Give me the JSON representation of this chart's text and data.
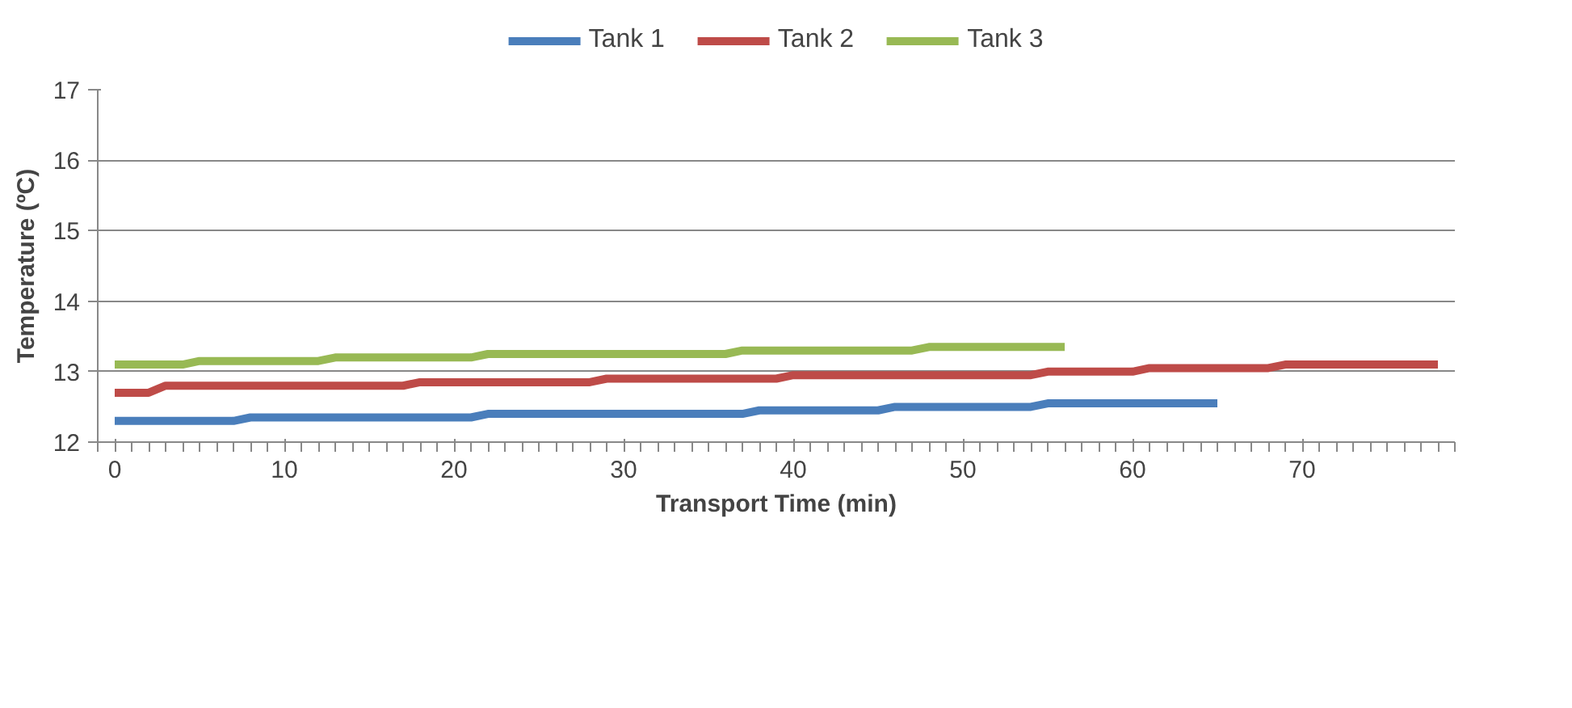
{
  "chart_data": {
    "type": "line",
    "xlabel": "Transport Time (min)",
    "ylabel": "Temperature (ºC)",
    "xlim": [
      -1,
      79
    ],
    "xticks": [
      0,
      10,
      20,
      30,
      40,
      50,
      60,
      70
    ],
    "ylim": [
      12,
      17
    ],
    "yticks": [
      12,
      13,
      14,
      15,
      16,
      17
    ],
    "grid": "y",
    "legend": "top",
    "marker": "none",
    "line_style": "solid",
    "series": [
      {
        "name": "Tank 1",
        "color": "#4a7ebb",
        "x": [
          0,
          7,
          8,
          21,
          22,
          37,
          38,
          45,
          46,
          54,
          55,
          65
        ],
        "values": [
          12.3,
          12.3,
          12.35,
          12.35,
          12.4,
          12.4,
          12.45,
          12.45,
          12.5,
          12.5,
          12.55,
          12.55
        ]
      },
      {
        "name": "Tank 2",
        "color": "#be4b48",
        "x": [
          0,
          2,
          3,
          17,
          18,
          28,
          29,
          39,
          40,
          54,
          55,
          60,
          61,
          68,
          69,
          78
        ],
        "values": [
          12.7,
          12.7,
          12.8,
          12.8,
          12.85,
          12.85,
          12.9,
          12.9,
          12.95,
          12.95,
          13.0,
          13.0,
          13.05,
          13.05,
          13.1,
          13.1
        ]
      },
      {
        "name": "Tank 3",
        "color": "#98b954",
        "x": [
          0,
          4,
          5,
          12,
          13,
          21,
          22,
          36,
          37,
          47,
          48,
          56
        ],
        "values": [
          13.1,
          13.1,
          13.15,
          13.15,
          13.2,
          13.2,
          13.25,
          13.25,
          13.3,
          13.3,
          13.35,
          13.35
        ]
      }
    ]
  }
}
